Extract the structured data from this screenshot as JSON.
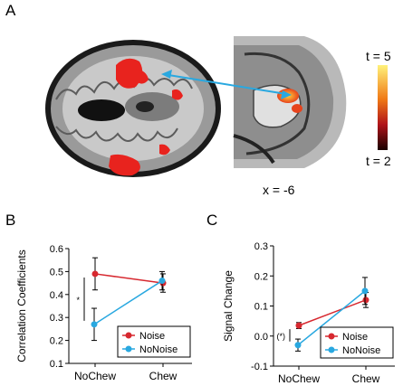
{
  "panels": {
    "a": "A",
    "b": "B",
    "c": "C"
  },
  "brain": {
    "slice_label": "x = -6",
    "colorbar_top": "t = 5",
    "colorbar_bottom": "t = 2"
  },
  "colors": {
    "noise": "#d7282f",
    "nonoise": "#29a8e0",
    "activation": "#e8231e",
    "arrow": "#29a8e0"
  },
  "chart_data": [
    {
      "type": "line",
      "panel": "B",
      "categories": [
        "NoChew",
        "Chew"
      ],
      "ylabel": "Correlation Coefficients",
      "ylim": [
        0.1,
        0.6
      ],
      "yticks": [
        "0.6",
        "0.5",
        "0.4",
        "0.3",
        "0.2",
        "0.1"
      ],
      "series": [
        {
          "name": "Noise",
          "values": [
            0.49,
            0.45
          ],
          "errors": [
            0.07,
            0.04
          ],
          "color": "#d7282f"
        },
        {
          "name": "NoNoise",
          "values": [
            0.27,
            0.46
          ],
          "errors": [
            0.07,
            0.04
          ],
          "color": "#29a8e0"
        }
      ],
      "legend": "bottom-right",
      "annotation": "*"
    },
    {
      "type": "line",
      "panel": "C",
      "categories": [
        "NoChew",
        "Chew"
      ],
      "ylabel": "Signal Change",
      "ylim": [
        -0.1,
        0.3
      ],
      "yticks": [
        "0.3",
        "0.2",
        "0.1",
        "0.0",
        "-0.1"
      ],
      "series": [
        {
          "name": "Noise",
          "values": [
            0.035,
            0.12
          ],
          "errors": [
            0.01,
            0.025
          ],
          "color": "#d7282f"
        },
        {
          "name": "NoNoise",
          "values": [
            -0.03,
            0.15
          ],
          "errors": [
            0.02,
            0.045
          ],
          "color": "#29a8e0"
        }
      ],
      "legend": "bottom-right",
      "annotation": "(*)"
    }
  ]
}
